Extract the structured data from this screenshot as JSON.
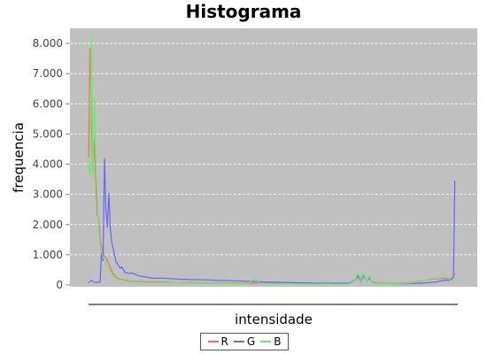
{
  "chart_data": {
    "type": "line",
    "title": "Histograma",
    "xlabel": "intensidade",
    "ylabel": "frequencia",
    "xlim": [
      0,
      255
    ],
    "ylim": [
      0,
      8500
    ],
    "yticks": [
      {
        "value": 0,
        "label": "0"
      },
      {
        "value": 1000,
        "label": "1.000"
      },
      {
        "value": 2000,
        "label": "2.000"
      },
      {
        "value": 3000,
        "label": "3.000"
      },
      {
        "value": 4000,
        "label": "4.000"
      },
      {
        "value": 5000,
        "label": "5.000"
      },
      {
        "value": 6000,
        "label": "6.000"
      },
      {
        "value": 7000,
        "label": "7.000"
      },
      {
        "value": 8000,
        "label": "8.000"
      }
    ],
    "grid": true,
    "legend_position": "bottom",
    "background": "#c0c0c0",
    "series": [
      {
        "name": "R",
        "color": "#ff6666",
        "points": [
          [
            0,
            4200
          ],
          [
            1,
            7850
          ],
          [
            2,
            5500
          ],
          [
            3,
            3700
          ],
          [
            4,
            4800
          ],
          [
            5,
            3500
          ],
          [
            6,
            2300
          ],
          [
            7,
            2200
          ],
          [
            8,
            1500
          ],
          [
            10,
            1000
          ],
          [
            12,
            900
          ],
          [
            14,
            700
          ],
          [
            16,
            450
          ],
          [
            18,
            300
          ],
          [
            20,
            220
          ],
          [
            25,
            160
          ],
          [
            30,
            120
          ],
          [
            40,
            100
          ],
          [
            50,
            90
          ],
          [
            60,
            80
          ],
          [
            70,
            80
          ],
          [
            80,
            70
          ],
          [
            90,
            60
          ],
          [
            100,
            60
          ],
          [
            110,
            55
          ],
          [
            120,
            50
          ],
          [
            130,
            60
          ],
          [
            140,
            50
          ],
          [
            150,
            45
          ],
          [
            160,
            45
          ],
          [
            170,
            40
          ],
          [
            180,
            40
          ],
          [
            185,
            200
          ],
          [
            186,
            350
          ],
          [
            188,
            200
          ],
          [
            190,
            300
          ],
          [
            192,
            150
          ],
          [
            194,
            220
          ],
          [
            196,
            100
          ],
          [
            200,
            60
          ],
          [
            210,
            50
          ],
          [
            220,
            70
          ],
          [
            230,
            120
          ],
          [
            235,
            180
          ],
          [
            240,
            200
          ],
          [
            245,
            220
          ],
          [
            250,
            200
          ],
          [
            252,
            260
          ],
          [
            253,
            400
          ]
        ]
      },
      {
        "name": "G",
        "color": "#6666ff",
        "points": [
          [
            0,
            80
          ],
          [
            2,
            160
          ],
          [
            3,
            120
          ],
          [
            4,
            90
          ],
          [
            6,
            80
          ],
          [
            8,
            100
          ],
          [
            9,
            1100
          ],
          [
            10,
            800
          ],
          [
            11,
            4200
          ],
          [
            12,
            2500
          ],
          [
            13,
            1900
          ],
          [
            14,
            3050
          ],
          [
            15,
            1900
          ],
          [
            16,
            1400
          ],
          [
            18,
            1000
          ],
          [
            19,
            750
          ],
          [
            20,
            700
          ],
          [
            22,
            550
          ],
          [
            23,
            600
          ],
          [
            25,
            420
          ],
          [
            28,
            380
          ],
          [
            30,
            400
          ],
          [
            35,
            300
          ],
          [
            40,
            260
          ],
          [
            45,
            220
          ],
          [
            50,
            230
          ],
          [
            60,
            200
          ],
          [
            70,
            180
          ],
          [
            80,
            170
          ],
          [
            90,
            150
          ],
          [
            100,
            140
          ],
          [
            110,
            120
          ],
          [
            120,
            100
          ],
          [
            130,
            90
          ],
          [
            140,
            80
          ],
          [
            150,
            70
          ],
          [
            160,
            60
          ],
          [
            170,
            60
          ],
          [
            180,
            60
          ],
          [
            184,
            150
          ],
          [
            186,
            300
          ],
          [
            188,
            120
          ],
          [
            190,
            320
          ],
          [
            192,
            120
          ],
          [
            194,
            250
          ],
          [
            196,
            80
          ],
          [
            200,
            50
          ],
          [
            210,
            40
          ],
          [
            220,
            40
          ],
          [
            230,
            60
          ],
          [
            240,
            100
          ],
          [
            245,
            150
          ],
          [
            250,
            160
          ],
          [
            252,
            260
          ],
          [
            253,
            3450
          ]
        ]
      },
      {
        "name": "B",
        "color": "#66ee66",
        "points": [
          [
            0,
            4000
          ],
          [
            1,
            3600
          ],
          [
            2,
            8250
          ],
          [
            3,
            3500
          ],
          [
            4,
            6200
          ],
          [
            5,
            4000
          ],
          [
            6,
            3000
          ],
          [
            7,
            1800
          ],
          [
            8,
            1300
          ],
          [
            10,
            900
          ],
          [
            12,
            750
          ],
          [
            14,
            520
          ],
          [
            16,
            380
          ],
          [
            18,
            260
          ],
          [
            20,
            200
          ],
          [
            25,
            140
          ],
          [
            30,
            100
          ],
          [
            40,
            80
          ],
          [
            50,
            70
          ],
          [
            60,
            70
          ],
          [
            70,
            60
          ],
          [
            80,
            60
          ],
          [
            90,
            50
          ],
          [
            100,
            45
          ],
          [
            110,
            40
          ],
          [
            115,
            230
          ],
          [
            118,
            50
          ],
          [
            120,
            45
          ],
          [
            130,
            40
          ],
          [
            140,
            40
          ],
          [
            150,
            35
          ],
          [
            160,
            35
          ],
          [
            170,
            30
          ],
          [
            180,
            30
          ],
          [
            184,
            150
          ],
          [
            186,
            400
          ],
          [
            188,
            150
          ],
          [
            190,
            380
          ],
          [
            192,
            120
          ],
          [
            194,
            300
          ],
          [
            196,
            80
          ],
          [
            200,
            40
          ],
          [
            210,
            40
          ],
          [
            220,
            60
          ],
          [
            230,
            100
          ],
          [
            235,
            200
          ],
          [
            240,
            220
          ],
          [
            245,
            250
          ],
          [
            248,
            300
          ],
          [
            250,
            150
          ],
          [
            252,
            120
          ],
          [
            253,
            150
          ]
        ]
      }
    ]
  }
}
